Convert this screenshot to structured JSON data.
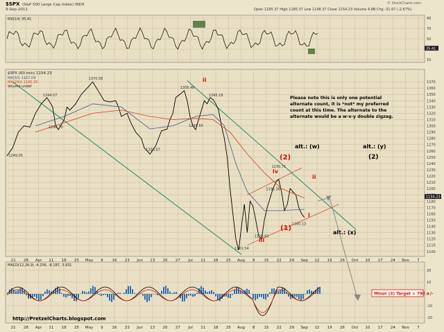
{
  "header": {
    "symbol": "$SPX",
    "name": "(S&P 500 Large Cap Index) INDX",
    "date": "9-Sep-2011",
    "stats": "Open 1185.37  High 1185.37  Low 1148.37  Close 1154.23  Volume 4.8B  Chg -31.67 (-2.67%)",
    "watermark": "© StockCharts.com"
  },
  "panels": {
    "rsi_label": "RSI(14) 35.41",
    "rsi_ticks": [
      "90",
      "70",
      "50",
      "30",
      "10"
    ],
    "rsi_last": "35.41",
    "price_label": "$SPX (60 min) 1154.23",
    "ma50_label": "MA(50) 1167.04",
    "ma200_label": "MA(200) 1185.25",
    "volume_label": "Volume undef",
    "price_last": "1154.23",
    "macd_label": "MACD(12,26,9) -4.256, -8.187, 3.931",
    "macd_ticks": [
      "20",
      "10",
      "0",
      "-10",
      "-20"
    ]
  },
  "xaxis": [
    "21",
    "28",
    "Apr",
    "11",
    "18",
    "25",
    "May",
    "9",
    "16",
    "23",
    "Jun",
    "13",
    "20",
    "27",
    "Jul",
    "11",
    "18",
    "25",
    "Aug",
    "8",
    "15",
    "22",
    "29",
    "Sep",
    "12",
    "19",
    "26",
    "Oct",
    "10",
    "17",
    "24",
    "Nov",
    "7"
  ],
  "annotations": {
    "note": "Please note this is only one potential alternate count, it is *not* my preferred count at this time. The alternate to the alternate would be a w-x-y double zigzag.",
    "note_lines": [
      "Please note this is only one potential",
      "alternate count, it is *not* my preferred",
      "count at this time. The alternate to the",
      "alternate would be a w-x-y double zigzag."
    ],
    "alt_w": "alt.: (w)",
    "alt_y": "alt.: (y)",
    "alt_x": "alt.: (x)",
    "wave_2_alt": "(2)",
    "wave_2_red": "(2)",
    "wave_1_red": "(1)",
    "ii_top": "ii",
    "ii_right": "ii",
    "iii": "iii",
    "iv": "iv",
    "i": "i",
    "target": "Minor (3) Target = 790 +/-",
    "footer": "http://PretzelCharts.blogspot.com"
  },
  "price_marks": [
    "1249.05",
    "1344.07",
    "1294.70",
    "1370.58",
    "1258.07",
    "1356.48",
    "1345.18",
    "1295.55",
    "1101.54",
    "1120.82",
    "1230.71",
    "1195.38",
    "1140.13"
  ],
  "colors": {
    "background": "#ede4cc",
    "panel_bg": "#e9dfc4",
    "price_line": "#000000",
    "ma50": "#3b5b8a",
    "ma200": "#d04020",
    "channel": "#1a8a6e",
    "wave_red": "#cc1100",
    "rsi_fill": "#3e6b2a",
    "macd_hist": "#2f6fb0",
    "macd_signal": "#cc2200"
  },
  "chart_data": {
    "type": "line",
    "title": "$SPX (S&P 500 Large Cap Index) INDX",
    "xlabel": "",
    "ylabel": "",
    "x_ticks": [
      "21",
      "28",
      "Apr",
      "11",
      "18",
      "25",
      "May",
      "9",
      "16",
      "23",
      "Jun",
      "13",
      "20",
      "27",
      "Jul",
      "11",
      "18",
      "25",
      "Aug",
      "8",
      "15",
      "22",
      "29",
      "Sep",
      "12",
      "19",
      "26",
      "Oct",
      "10",
      "17",
      "24",
      "Nov",
      "7"
    ],
    "ylim": [
      1092,
      1390
    ],
    "y_ticks": [
      1370,
      1360,
      1350,
      1340,
      1330,
      1320,
      1310,
      1300,
      1290,
      1280,
      1270,
      1260,
      1250,
      1240,
      1230,
      1220,
      1210,
      1200,
      1190,
      1180,
      1170,
      1160,
      1150,
      1140,
      1130,
      1120,
      1110,
      1100
    ],
    "series": [
      {
        "name": "$SPX (60 min)",
        "color": "#000000",
        "values": [
          [
            0,
            1252
          ],
          [
            2,
            1265
          ],
          [
            4,
            1290
          ],
          [
            6,
            1300
          ],
          [
            8,
            1298
          ],
          [
            10,
            1320
          ],
          [
            12,
            1335
          ],
          [
            14,
            1345
          ],
          [
            16,
            1330
          ],
          [
            17,
            1300
          ],
          [
            18,
            1294
          ],
          [
            20,
            1310
          ],
          [
            21,
            1330
          ],
          [
            22,
            1325
          ],
          [
            24,
            1335
          ],
          [
            26,
            1350
          ],
          [
            28,
            1360
          ],
          [
            30,
            1370
          ],
          [
            32,
            1355
          ],
          [
            34,
            1340
          ],
          [
            36,
            1338
          ],
          [
            38,
            1340
          ],
          [
            39,
            1330
          ],
          [
            40,
            1315
          ],
          [
            42,
            1320
          ],
          [
            43,
            1308
          ],
          [
            45,
            1290
          ],
          [
            47,
            1280
          ],
          [
            48,
            1265
          ],
          [
            50,
            1255
          ],
          [
            52,
            1268
          ],
          [
            54,
            1292
          ],
          [
            56,
            1295
          ],
          [
            57,
            1310
          ],
          [
            58,
            1320
          ],
          [
            59,
            1345
          ],
          [
            61,
            1352
          ],
          [
            62,
            1356
          ],
          [
            63,
            1340
          ],
          [
            64,
            1315
          ],
          [
            65,
            1300
          ],
          [
            66,
            1294
          ],
          [
            67,
            1310
          ],
          [
            68,
            1325
          ],
          [
            69,
            1340
          ],
          [
            70,
            1335
          ],
          [
            71,
            1345
          ],
          [
            72,
            1342
          ],
          [
            73,
            1335
          ],
          [
            74,
            1325
          ],
          [
            75,
            1300
          ],
          [
            76,
            1280
          ],
          [
            77,
            1250
          ],
          [
            78,
            1200
          ],
          [
            79,
            1160
          ],
          [
            80,
            1120
          ],
          [
            81,
            1102
          ],
          [
            82,
            1140
          ],
          [
            83,
            1175
          ],
          [
            84,
            1130
          ],
          [
            85,
            1180
          ],
          [
            86,
            1172
          ],
          [
            87,
            1150
          ],
          [
            88,
            1125
          ],
          [
            89,
            1120
          ],
          [
            90,
            1150
          ],
          [
            91,
            1170
          ],
          [
            92,
            1185
          ],
          [
            93,
            1200
          ],
          [
            94,
            1210
          ],
          [
            95,
            1215
          ],
          [
            96,
            1195
          ],
          [
            97,
            1165
          ],
          [
            98,
            1175
          ],
          [
            99,
            1200
          ],
          [
            100,
            1195
          ],
          [
            101,
            1190
          ],
          [
            102,
            1170
          ],
          [
            103,
            1160
          ],
          [
            104,
            1154
          ]
        ]
      },
      {
        "name": "MA(50)",
        "color": "#3b5b8a",
        "values": [
          [
            10,
            1300
          ],
          [
            20,
            1315
          ],
          [
            30,
            1335
          ],
          [
            40,
            1330
          ],
          [
            50,
            1295
          ],
          [
            58,
            1300
          ],
          [
            66,
            1315
          ],
          [
            72,
            1318
          ],
          [
            76,
            1300
          ],
          [
            80,
            1240
          ],
          [
            84,
            1195
          ],
          [
            90,
            1165
          ],
          [
            96,
            1165
          ],
          [
            104,
            1167
          ]
        ]
      },
      {
        "name": "MA(200)",
        "color": "#d04020",
        "values": [
          [
            10,
            1290
          ],
          [
            20,
            1305
          ],
          [
            30,
            1320
          ],
          [
            40,
            1325
          ],
          [
            50,
            1315
          ],
          [
            58,
            1310
          ],
          [
            66,
            1312
          ],
          [
            72,
            1310
          ],
          [
            78,
            1290
          ],
          [
            84,
            1255
          ],
          [
            90,
            1225
          ],
          [
            96,
            1200
          ],
          [
            104,
            1185
          ]
        ]
      }
    ]
  }
}
